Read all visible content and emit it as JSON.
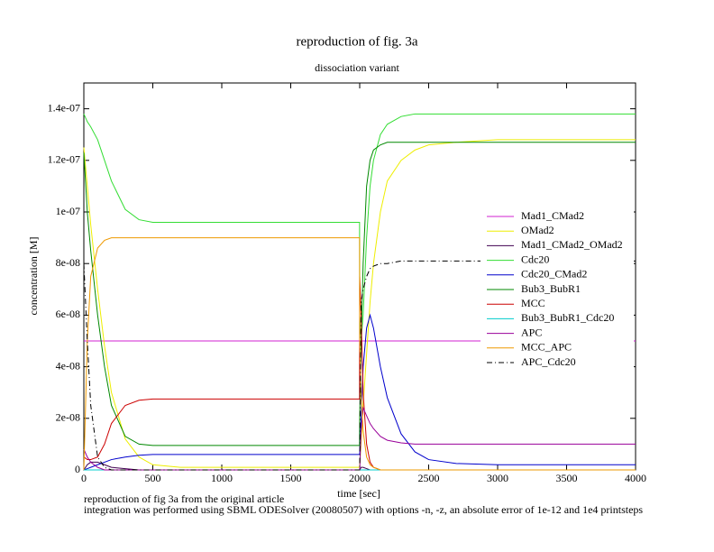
{
  "chart_data": {
    "type": "line",
    "title": "reproduction of fig. 3a",
    "subtitle": "dissociation variant",
    "x_label": "time [sec]",
    "y_label": "concentration [M]",
    "notes": [
      "reproduction of fig 3a from the original article",
      "integration was performed using SBML ODESolver (20080507) with options -n, -z, an absolute error of 1e-12 and 1e4 printsteps"
    ],
    "xlim": [
      0,
      4000
    ],
    "xticks": [
      0,
      500,
      1000,
      1500,
      2000,
      2500,
      3000,
      3500,
      4000
    ],
    "ylim": [
      0,
      1.5e-07
    ],
    "yticks": [
      0,
      {
        "value": 2e-08,
        "label": "2e-08"
      },
      {
        "value": 4e-08,
        "label": "4e-08"
      },
      {
        "value": 6e-08,
        "label": "6e-08"
      },
      {
        "value": 8e-08,
        "label": "8e-08"
      },
      {
        "value": 1e-07,
        "label": "1e-07"
      },
      {
        "value": 1.2e-07,
        "label": "1.2e-07"
      },
      {
        "value": 1.4e-07,
        "label": "1.4e-07"
      }
    ],
    "x": [
      0,
      25,
      50,
      100,
      150,
      200,
      300,
      400,
      500,
      700,
      1000,
      1500,
      1999,
      2000,
      2010,
      2025,
      2050,
      2075,
      2100,
      2150,
      2200,
      2300,
      2400,
      2500,
      2700,
      3000,
      3500,
      4000
    ],
    "series": [
      {
        "name": "Mad1_CMad2",
        "color": "#d020d0",
        "values": [
          5e-08,
          5e-08,
          5e-08,
          5e-08,
          5e-08,
          5e-08,
          5e-08,
          5e-08,
          5e-08,
          5e-08,
          5e-08,
          5e-08,
          5e-08,
          5e-08,
          5e-08,
          5e-08,
          5e-08,
          5e-08,
          5e-08,
          5e-08,
          5e-08,
          5e-08,
          5e-08,
          5e-08,
          5e-08,
          5e-08,
          5e-08,
          5e-08
        ]
      },
      {
        "name": "OMad2",
        "color": "#eeee00",
        "values": [
          1.25e-07,
          1.1e-07,
          9.5e-08,
          7e-08,
          4.8e-08,
          3e-08,
          1.2e-08,
          5e-09,
          2e-09,
          1e-09,
          1e-09,
          1e-09,
          1e-09,
          2e-09,
          1e-08,
          2.5e-08,
          4.5e-08,
          6.5e-08,
          8e-08,
          1e-07,
          1.12e-07,
          1.2e-07,
          1.24e-07,
          1.26e-07,
          1.27e-07,
          1.28e-07,
          1.28e-07,
          1.28e-07
        ]
      },
      {
        "name": "Mad1_CMad2_OMad2",
        "color": "#400050",
        "values": [
          0,
          2e-09,
          3e-09,
          3e-09,
          2e-09,
          1e-09,
          5e-10,
          0,
          0,
          0,
          0,
          0,
          0,
          0,
          1e-09,
          1e-09,
          5e-10,
          0,
          0,
          0,
          0,
          0,
          0,
          0,
          0,
          0,
          0,
          0
        ]
      },
      {
        "name": "Cdc20",
        "color": "#33dd33",
        "values": [
          1.38e-07,
          1.35e-07,
          1.33e-07,
          1.28e-07,
          1.2e-07,
          1.12e-07,
          1.01e-07,
          9.7e-08,
          9.6e-08,
          9.6e-08,
          9.6e-08,
          9.6e-08,
          9.6e-08,
          6e-08,
          5e-08,
          6e-08,
          9e-08,
          1.1e-07,
          1.2e-07,
          1.3e-07,
          1.34e-07,
          1.37e-07,
          1.38e-07,
          1.38e-07,
          1.38e-07,
          1.38e-07,
          1.38e-07,
          1.38e-07
        ]
      },
      {
        "name": "Cdc20_CMad2",
        "color": "#0000cc",
        "values": [
          0,
          5e-10,
          1e-09,
          2e-09,
          3e-09,
          4e-09,
          5e-09,
          5.7e-09,
          6e-09,
          6e-09,
          6e-09,
          6e-09,
          6e-09,
          6e-09,
          2e-08,
          4e-08,
          5.5e-08,
          6e-08,
          5.5e-08,
          4e-08,
          2.8e-08,
          1.4e-08,
          7e-09,
          4e-09,
          2.5e-09,
          2e-09,
          2e-09,
          2e-09
        ]
      },
      {
        "name": "Bub3_BubR1",
        "color": "#008800",
        "values": [
          1.23e-07,
          1e-07,
          8.5e-08,
          6e-08,
          4e-08,
          2.5e-08,
          1.3e-08,
          1e-08,
          9.5e-09,
          9.5e-09,
          9.5e-09,
          9.5e-09,
          9.5e-09,
          2e-08,
          5e-08,
          8e-08,
          1.1e-07,
          1.2e-07,
          1.24e-07,
          1.26e-07,
          1.27e-07,
          1.27e-07,
          1.27e-07,
          1.27e-07,
          1.27e-07,
          1.27e-07,
          1.27e-07,
          1.27e-07
        ]
      },
      {
        "name": "MCC",
        "color": "#cc0000",
        "values": [
          5e-09,
          4e-09,
          4e-09,
          5e-09,
          1e-08,
          1.8e-08,
          2.5e-08,
          2.7e-08,
          2.75e-08,
          2.75e-08,
          2.75e-08,
          2.75e-08,
          2.75e-08,
          7.5e-08,
          6e-08,
          3e-08,
          1e-08,
          3e-09,
          1e-09,
          0,
          0,
          0,
          0,
          0,
          0,
          0,
          0,
          0
        ]
      },
      {
        "name": "Bub3_BubR1_Cdc20",
        "color": "#00cccc",
        "values": [
          0,
          0,
          0,
          0,
          0,
          0,
          0,
          0,
          0,
          0,
          0,
          0,
          0,
          0,
          0,
          0,
          0,
          0,
          0,
          0,
          0,
          0,
          0,
          0,
          0,
          0,
          0,
          0
        ]
      },
      {
        "name": "APC",
        "color": "#990099",
        "values": [
          8e-09,
          5e-09,
          3e-09,
          1e-09,
          0,
          0,
          0,
          0,
          0,
          0,
          0,
          0,
          0,
          0,
          1.5e-08,
          2.4e-08,
          2.1e-08,
          1.8e-08,
          1.6e-08,
          1.3e-08,
          1.15e-08,
          1.05e-08,
          1e-08,
          1e-08,
          1e-08,
          1e-08,
          1e-08,
          1e-08
        ]
      },
      {
        "name": "MCC_APC",
        "color": "#ee9900",
        "values": [
          0,
          5e-08,
          7.5e-08,
          8.6e-08,
          8.9e-08,
          9e-08,
          9e-08,
          9e-08,
          9e-08,
          9e-08,
          9e-08,
          9e-08,
          9e-08,
          5e-08,
          3e-08,
          1.5e-08,
          5e-09,
          2e-09,
          1e-09,
          0,
          0,
          0,
          0,
          0,
          0,
          0,
          0,
          0
        ]
      },
      {
        "name": "APC_Cdc20",
        "color": "#000000",
        "line_style": "dashdot",
        "values": [
          8e-08,
          5e-08,
          2.5e-08,
          5e-09,
          1e-09,
          0,
          0,
          0,
          0,
          0,
          0,
          0,
          0,
          0,
          6.5e-08,
          7e-08,
          7.5e-08,
          7.8e-08,
          7.9e-08,
          8e-08,
          8e-08,
          8.1e-08,
          8.1e-08,
          8.1e-08,
          8.1e-08,
          8.1e-08,
          8.1e-08,
          8.1e-08
        ]
      }
    ]
  }
}
